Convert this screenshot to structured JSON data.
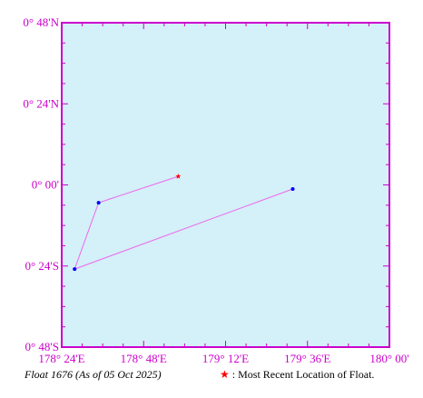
{
  "map": {
    "ocean_color": "#d4f0f8",
    "frame_color": "#cc00cc",
    "track_color": "#ee66ee",
    "position_color": "#0000ff",
    "latest_color": "#ff0000",
    "lat_range": [
      -0.8,
      0.8
    ],
    "lon_range": [
      178.4,
      180.0
    ],
    "lat_ticks": [
      {
        "value": 0.8,
        "label": "0° 48'N"
      },
      {
        "value": 0.4,
        "label": "0° 24'N"
      },
      {
        "value": 0.0,
        "label": "0° 00'"
      },
      {
        "value": -0.4,
        "label": "0° 24'S"
      },
      {
        "value": -0.8,
        "label": "0° 48'S"
      }
    ],
    "lon_ticks": [
      {
        "value": 178.4,
        "label": "178° 24'E"
      },
      {
        "value": 178.8,
        "label": "178° 48'E"
      },
      {
        "value": 179.2,
        "label": "179° 12'E"
      },
      {
        "value": 179.6,
        "label": "179° 36'E"
      },
      {
        "value": 180.0,
        "label": "180° 00'"
      }
    ],
    "track": [
      {
        "lon": 179.528,
        "lat": -0.02
      },
      {
        "lon": 178.463,
        "lat": -0.415
      },
      {
        "lon": 178.58,
        "lat": -0.088
      },
      {
        "lon": 178.969,
        "lat": 0.042
      }
    ]
  },
  "caption": {
    "float_info": "Float 1676 (As of 05 Oct 2025)",
    "legend_marker": "★",
    "legend_text": ": Most Recent Location of Float."
  }
}
